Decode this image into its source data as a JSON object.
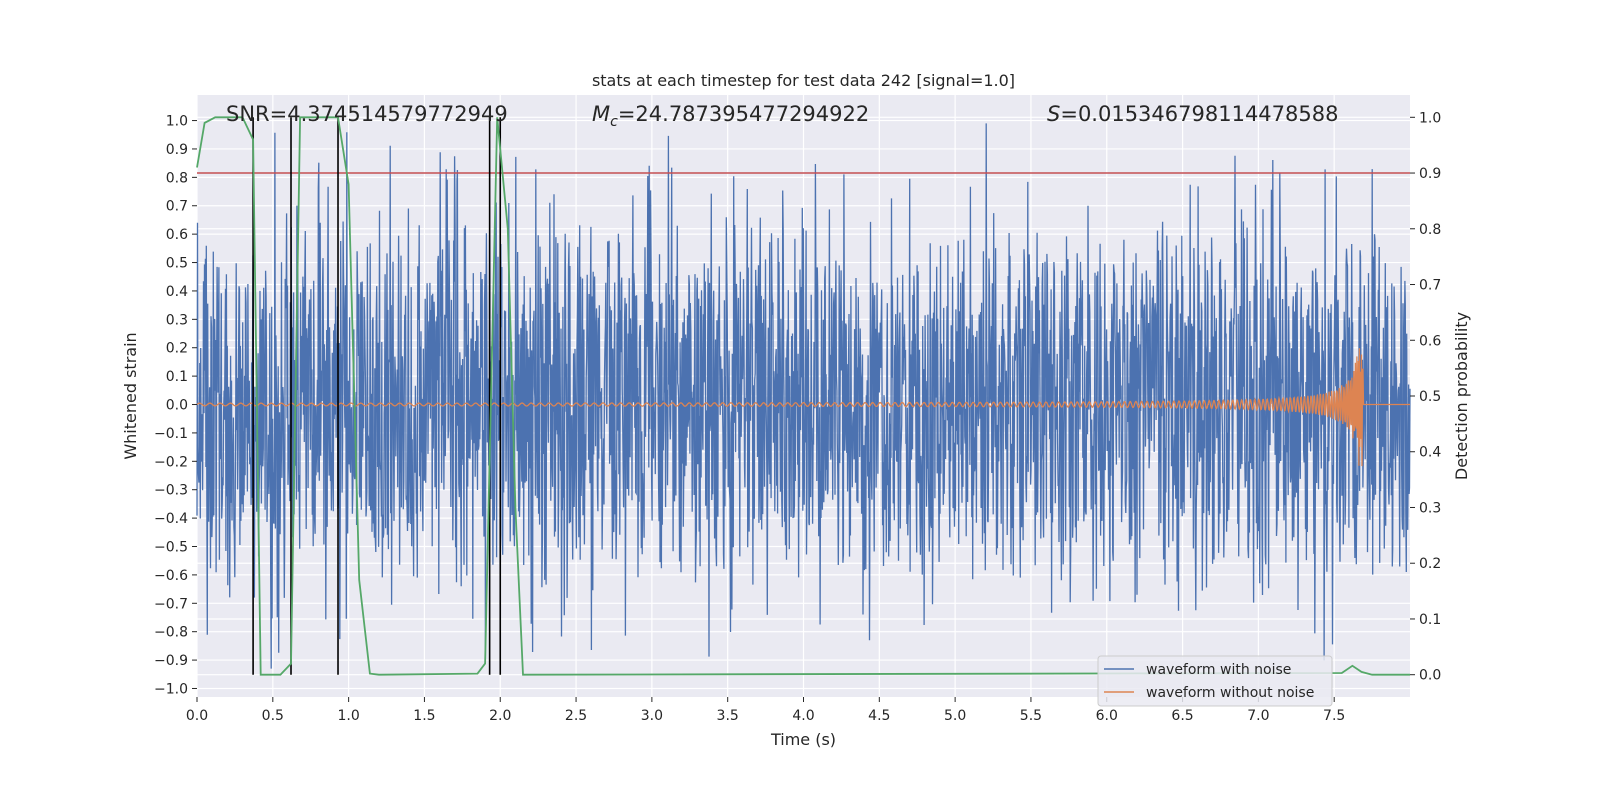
{
  "chart_data": {
    "type": "line",
    "title": "stats at each timestep for test data 242 [signal=1.0]",
    "xlabel": "Time (s)",
    "ylabel_left": "Whitened strain",
    "ylabel_right": "Detection probability",
    "xlim": [
      0.0,
      8.0
    ],
    "ylim_left": [
      -1.03,
      1.09
    ],
    "ylim_right": [
      -0.04,
      1.04
    ],
    "x_ticks": [
      "0.0",
      "0.5",
      "1.0",
      "1.5",
      "2.0",
      "2.5",
      "3.0",
      "3.5",
      "4.0",
      "4.5",
      "5.0",
      "5.5",
      "6.0",
      "6.5",
      "7.0",
      "7.5"
    ],
    "y_ticks_left": [
      "1.0",
      "0.9",
      "0.8",
      "0.7",
      "0.6",
      "0.5",
      "0.4",
      "0.3",
      "0.2",
      "0.1",
      "0.0",
      "-0.1",
      "-0.2",
      "-0.3",
      "-0.4",
      "-0.5",
      "-0.6",
      "-0.7",
      "-0.8",
      "-0.9",
      "-1.0"
    ],
    "y_ticks_right": [
      "1.0",
      "0.9",
      "0.8",
      "0.7",
      "0.6",
      "0.5",
      "0.4",
      "0.3",
      "0.2",
      "0.1",
      "0.0"
    ],
    "grid": true,
    "annotations": {
      "snr": "SNR=4.374514579772949",
      "mc_symbol": "M",
      "mc_sub": "c",
      "mc_value": "=24.787395477294922",
      "s_symbol": "S",
      "s_value": "=0.015346798114478588"
    },
    "legend": {
      "placement": "lower-right",
      "entries": [
        "waveform with noise",
        "waveform without noise"
      ]
    },
    "colors": {
      "noise": "#4c72b0",
      "clean": "#dd8452",
      "probability": "#55a868",
      "threshold": "#c44e52",
      "markers": "#000000",
      "plot_bg": "#eaeaf2"
    },
    "series": [
      {
        "name": "waveform with noise",
        "axis": "left",
        "description": "whitened noisy strain, approx. uniform noise within [-0.7, 0.7] with peaks to ~1.0"
      },
      {
        "name": "waveform without noise",
        "axis": "left",
        "chirp": {
          "t_merge": 7.69,
          "amp_start": 0.004,
          "amp_peak": 0.22,
          "cycles": 180
        }
      },
      {
        "name": "detection probability",
        "axis": "right",
        "x": [
          0.0,
          0.05,
          0.12,
          0.3,
          0.37,
          0.42,
          0.55,
          0.62,
          0.68,
          0.93,
          1.0,
          1.07,
          1.14,
          1.2,
          1.85,
          1.9,
          1.98,
          2.05,
          2.1,
          2.15,
          7.55,
          7.62,
          7.68,
          7.75,
          8.0
        ],
        "y": [
          0.91,
          0.99,
          1.0,
          1.0,
          0.96,
          0.0,
          0.0,
          0.02,
          1.0,
          1.0,
          0.88,
          0.17,
          0.002,
          0.0,
          0.002,
          0.02,
          1.0,
          0.8,
          0.3,
          0.0,
          0.003,
          0.016,
          0.005,
          0.0,
          0.0
        ]
      },
      {
        "name": "threshold",
        "axis": "right",
        "value": 0.9
      },
      {
        "name": "trigger markers",
        "axis": "right",
        "x": [
          0.37,
          0.62,
          0.93,
          1.93,
          2.0
        ],
        "y_range": [
          0.0,
          1.0
        ]
      }
    ]
  }
}
